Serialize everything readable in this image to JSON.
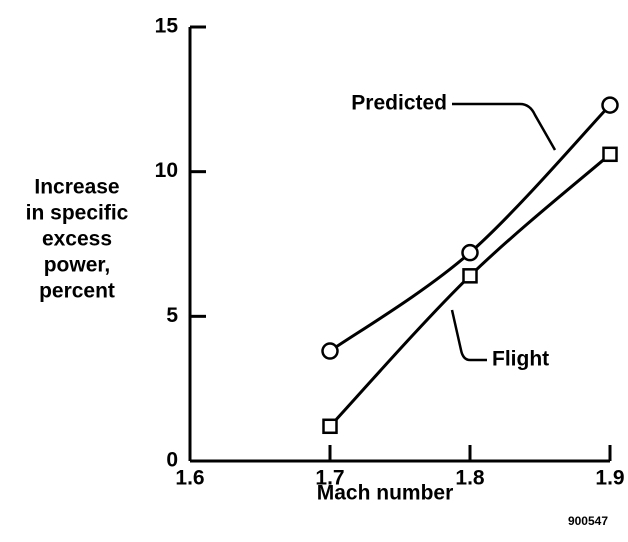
{
  "chart_data": {
    "type": "line",
    "xlabel": "Mach number",
    "ylabel": [
      "Increase",
      "in specific",
      "excess",
      "power,",
      "percent"
    ],
    "figure_id": "900547",
    "x": [
      1.7,
      1.8,
      1.9
    ],
    "series": [
      {
        "name": "Predicted",
        "color": "#000000",
        "marker": "circle",
        "values": [
          3.8,
          7.2,
          12.3
        ]
      },
      {
        "name": "Flight",
        "color": "#000000",
        "marker": "square",
        "values": [
          1.2,
          6.4,
          10.6
        ]
      }
    ],
    "xlim": [
      1.6,
      1.9
    ],
    "xticks": [
      1.6,
      1.7,
      1.8,
      1.9
    ],
    "ylim": [
      0,
      15
    ],
    "yticks": [
      0,
      5,
      10,
      15
    ],
    "grid": false
  }
}
